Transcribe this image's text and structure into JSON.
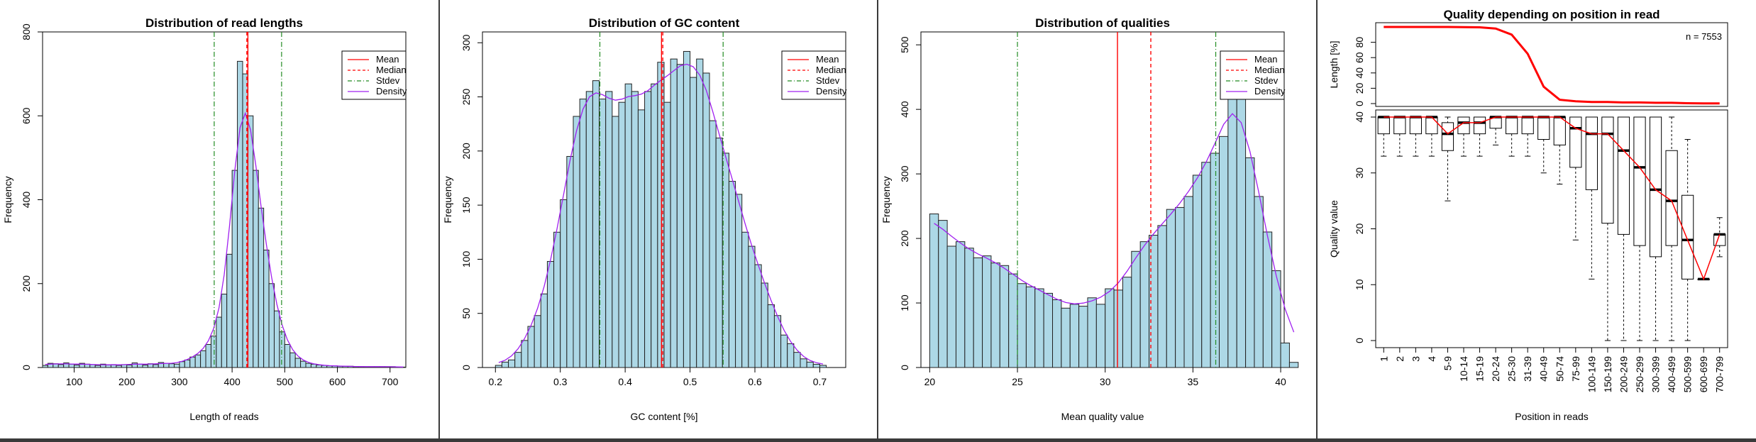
{
  "panels": [
    {
      "id": "lengths",
      "title": "Distribution of read lengths",
      "xlabel": "Length of reads",
      "ylabel": "Frequency"
    },
    {
      "id": "gc",
      "title": "Distribution of GC content",
      "xlabel": "GC content [%]",
      "ylabel": "Frequency"
    },
    {
      "id": "qual",
      "title": "Distribution of qualities",
      "xlabel": "Mean quality value",
      "ylabel": "Frequency"
    },
    {
      "id": "pos",
      "title": "Quality depending on position in read",
      "top_ylabel": "Length [%]",
      "ylabel": "Quality value",
      "xlabel": "Position in reads",
      "n_label": "n = 7553"
    }
  ],
  "legend": [
    "Mean",
    "Median",
    "Stdev",
    "Density"
  ],
  "colors": {
    "bar_fill": "#add8e6",
    "bar_edge": "#222222",
    "mean": "#ff0000",
    "median": "#ff0000",
    "stdev": "#228b22",
    "density": "#a020f0",
    "length_line": "#ff0000",
    "median_line": "#ff0000"
  },
  "chart_data": [
    {
      "type": "bar",
      "title": "Distribution of read lengths",
      "xlabel": "Length of reads",
      "ylabel": "Frequency",
      "xlim": [
        40,
        730
      ],
      "ylim": [
        0,
        800
      ],
      "xticks": [
        100,
        200,
        300,
        400,
        500,
        600,
        700
      ],
      "yticks": [
        0,
        200,
        400,
        600,
        800
      ],
      "bin_start": 40,
      "bin_width": 10,
      "values": [
        5,
        10,
        9,
        7,
        11,
        8,
        6,
        10,
        8,
        7,
        5,
        8,
        6,
        7,
        5,
        7,
        6,
        11,
        8,
        6,
        9,
        7,
        12,
        10,
        9,
        8,
        14,
        18,
        25,
        30,
        40,
        55,
        75,
        120,
        175,
        270,
        470,
        730,
        700,
        600,
        470,
        380,
        280,
        200,
        135,
        85,
        55,
        35,
        22,
        15,
        10,
        8,
        6,
        5,
        4,
        4,
        3,
        3,
        3,
        2,
        2,
        2,
        2,
        2,
        2,
        2,
        2,
        1,
        1
      ],
      "mean": 430,
      "median": 428,
      "stdev_lines": [
        366,
        494
      ],
      "legend": [
        "Mean",
        "Median",
        "Stdev",
        "Density"
      ]
    },
    {
      "type": "bar",
      "title": "Distribution of GC content",
      "xlabel": "GC content [%]",
      "ylabel": "Frequency",
      "xlim": [
        0.18,
        0.74
      ],
      "ylim": [
        0,
        310
      ],
      "xticks": [
        0.2,
        0.3,
        0.4,
        0.5,
        0.6,
        0.7
      ],
      "yticks": [
        0,
        50,
        100,
        150,
        200,
        250,
        300
      ],
      "bin_start": 0.2,
      "bin_width": 0.01,
      "values": [
        2,
        5,
        7,
        14,
        25,
        38,
        48,
        68,
        98,
        125,
        155,
        195,
        232,
        248,
        255,
        265,
        248,
        255,
        232,
        245,
        262,
        255,
        238,
        255,
        262,
        282,
        245,
        285,
        280,
        292,
        268,
        285,
        272,
        228,
        212,
        198,
        172,
        160,
        125,
        112,
        95,
        78,
        58,
        48,
        30,
        22,
        14,
        8,
        5,
        3,
        2
      ],
      "mean": 0.456,
      "median": 0.458,
      "stdev_lines": [
        0.361,
        0.551
      ],
      "legend": [
        "Mean",
        "Median",
        "Stdev",
        "Density"
      ]
    },
    {
      "type": "bar",
      "title": "Distribution of qualities",
      "xlabel": "Mean quality value",
      "ylabel": "Frequency",
      "xlim": [
        19.5,
        40.2
      ],
      "ylim": [
        0,
        520
      ],
      "xticks": [
        20,
        25,
        30,
        35,
        40
      ],
      "yticks": [
        0,
        100,
        200,
        300,
        400,
        500
      ],
      "bin_start": 20,
      "bin_width": 0.5,
      "values": [
        238,
        228,
        188,
        195,
        185,
        170,
        173,
        162,
        158,
        145,
        130,
        125,
        122,
        115,
        105,
        92,
        98,
        95,
        108,
        98,
        122,
        120,
        140,
        180,
        195,
        205,
        220,
        245,
        248,
        265,
        298,
        318,
        332,
        358,
        465,
        440,
        325,
        265,
        210,
        150,
        38,
        8
      ],
      "mean": 30.7,
      "median": 32.6,
      "stdev_lines": [
        25.0,
        36.3
      ],
      "legend": [
        "Mean",
        "Median",
        "Stdev",
        "Density"
      ]
    },
    {
      "type": "line",
      "title": "Quality depending on position in read",
      "ylabel": "Length [%]",
      "n_label": "n = 7553",
      "ylim": [
        0,
        100
      ],
      "yticks": [
        0,
        20,
        40,
        60,
        80
      ],
      "categories": [
        "1",
        "2",
        "3",
        "4",
        "5-9",
        "10-14",
        "15-19",
        "20-24",
        "25-30",
        "31-39",
        "40-49",
        "50-74",
        "75-99",
        "100-149",
        "150-199",
        "200-249",
        "250-299",
        "300-399",
        "400-499",
        "500-599",
        "600-699",
        "700-799"
      ],
      "values": [
        100,
        100,
        100,
        100,
        100,
        99.8,
        99.5,
        98,
        90,
        65,
        22,
        5,
        3,
        2,
        2,
        1.5,
        1.5,
        1,
        1,
        0.5,
        0.3,
        0.2
      ]
    },
    {
      "type": "box",
      "title": "",
      "xlabel": "Position in reads",
      "ylabel": "Quality value",
      "ylim": [
        0,
        40
      ],
      "yticks": [
        0,
        10,
        20,
        30,
        40
      ],
      "categories": [
        "1",
        "2",
        "3",
        "4",
        "5-9",
        "10-14",
        "15-19",
        "20-24",
        "25-30",
        "31-39",
        "40-49",
        "50-74",
        "75-99",
        "100-149",
        "150-199",
        "200-249",
        "250-299",
        "300-399",
        "400-499",
        "500-599",
        "600-699",
        "700-799"
      ],
      "boxes": [
        {
          "min": 33,
          "q1": 37,
          "median": 40,
          "q3": 40,
          "max": 40
        },
        {
          "min": 33,
          "q1": 37,
          "median": 40,
          "q3": 40,
          "max": 40
        },
        {
          "min": 33,
          "q1": 37,
          "median": 40,
          "q3": 40,
          "max": 40
        },
        {
          "min": 33,
          "q1": 37,
          "median": 40,
          "q3": 40,
          "max": 40
        },
        {
          "min": 25,
          "q1": 34,
          "median": 37,
          "q3": 39,
          "max": 40
        },
        {
          "min": 33,
          "q1": 37,
          "median": 39,
          "q3": 40,
          "max": 40
        },
        {
          "min": 33,
          "q1": 37,
          "median": 39,
          "q3": 40,
          "max": 40
        },
        {
          "min": 35,
          "q1": 38,
          "median": 40,
          "q3": 40,
          "max": 40
        },
        {
          "min": 33,
          "q1": 37,
          "median": 40,
          "q3": 40,
          "max": 40
        },
        {
          "min": 33,
          "q1": 37,
          "median": 40,
          "q3": 40,
          "max": 40
        },
        {
          "min": 30,
          "q1": 36,
          "median": 40,
          "q3": 40,
          "max": 40
        },
        {
          "min": 28,
          "q1": 35,
          "median": 40,
          "q3": 40,
          "max": 40
        },
        {
          "min": 18,
          "q1": 31,
          "median": 38,
          "q3": 40,
          "max": 40
        },
        {
          "min": 11,
          "q1": 27,
          "median": 37,
          "q3": 40,
          "max": 40
        },
        {
          "min": 0,
          "q1": 21,
          "median": 37,
          "q3": 40,
          "max": 40
        },
        {
          "min": 0,
          "q1": 19,
          "median": 34,
          "q3": 40,
          "max": 40
        },
        {
          "min": 0,
          "q1": 17,
          "median": 31,
          "q3": 40,
          "max": 40
        },
        {
          "min": 0,
          "q1": 15,
          "median": 27,
          "q3": 40,
          "max": 40
        },
        {
          "min": 0,
          "q1": 17,
          "median": 25,
          "q3": 34,
          "max": 40
        },
        {
          "min": 0,
          "q1": 11,
          "median": 18,
          "q3": 26,
          "max": 36
        },
        {
          "min": 11,
          "q1": 11,
          "median": 11,
          "q3": 11,
          "max": 11
        },
        {
          "min": 15,
          "q1": 17,
          "median": 19,
          "q3": 19,
          "max": 22
        }
      ]
    }
  ]
}
